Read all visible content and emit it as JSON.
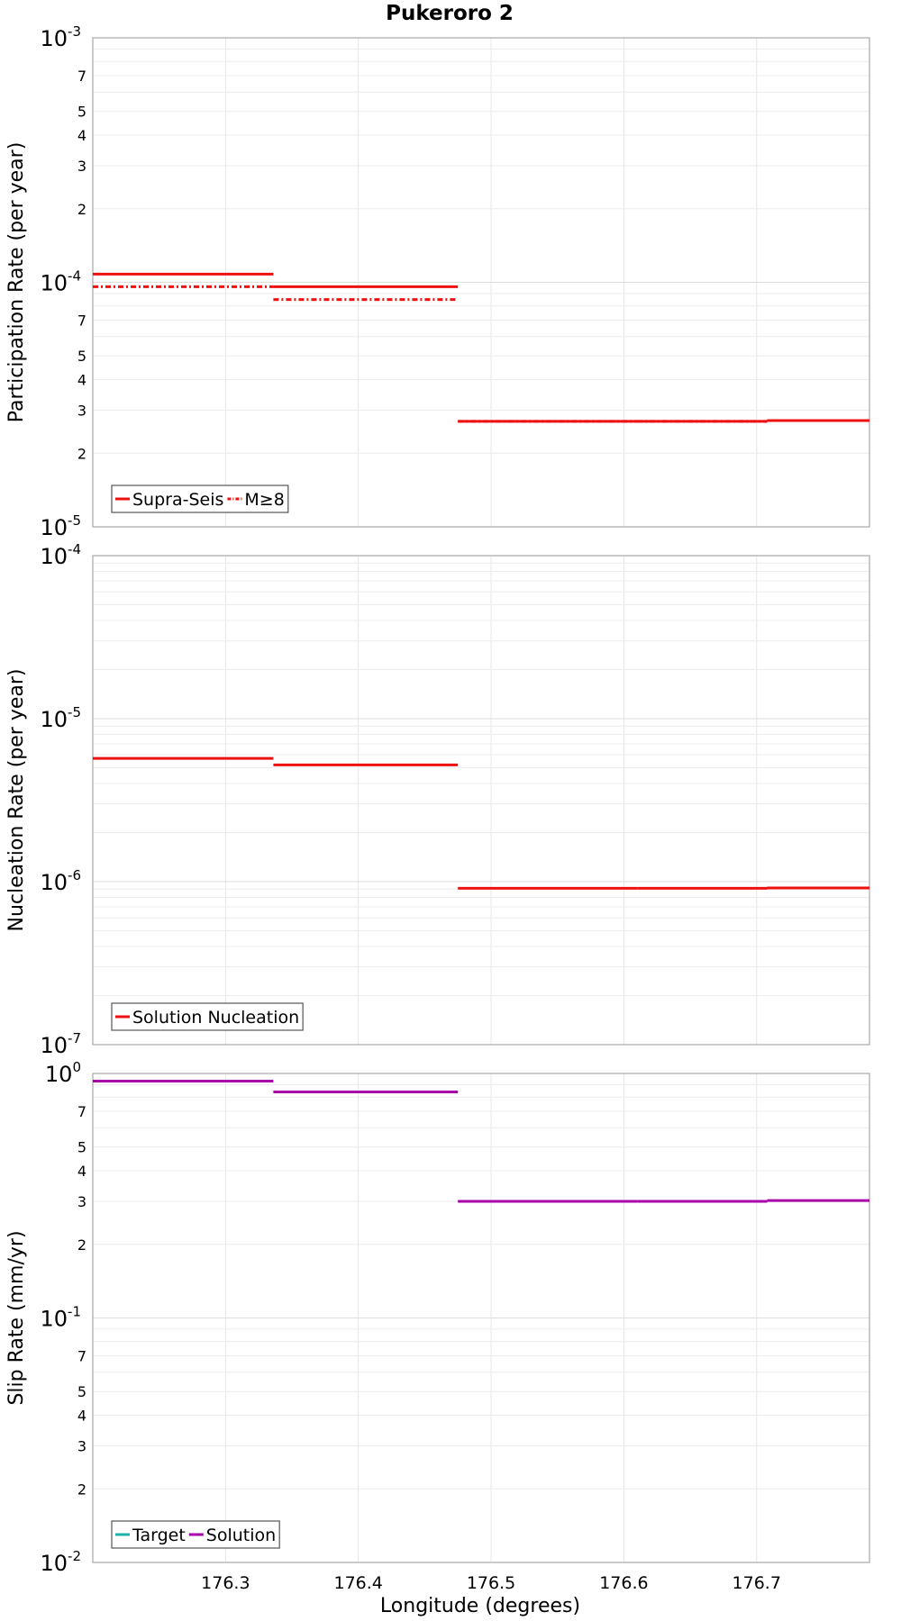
{
  "title": "Pukeroro 2",
  "xlabel": "Longitude (degrees)",
  "xlim": [
    176.2,
    176.785
  ],
  "xticks": [
    "176.3",
    "176.4",
    "176.5",
    "176.6",
    "176.7"
  ],
  "chart_data": [
    {
      "type": "line",
      "ylabel": "Participation Rate (per year)",
      "yscale": "log",
      "ylim": [
        1e-05,
        0.001
      ],
      "major_ticks": [
        {
          "base": "10",
          "exp": "-3"
        },
        {
          "base": "10",
          "exp": "-4"
        },
        {
          "base": "10",
          "exp": "-5"
        }
      ],
      "minor_tick_labels": [
        "7",
        "5",
        "4",
        "3",
        "2"
      ],
      "legend": [
        {
          "label": "Supra-Seis",
          "color": "#ee1111",
          "dash": "solid"
        },
        {
          "label": "M≥8",
          "color": "#ee1111",
          "dash": "dashdot"
        }
      ],
      "series": [
        {
          "name": "Supra-Seis",
          "color": "#ee1111",
          "dash": "solid",
          "steps": [
            {
              "x0": 176.2,
              "x1": 176.336,
              "y": 0.000108
            },
            {
              "x0": 176.336,
              "x1": 176.475,
              "y": 9.6e-05
            },
            {
              "x0": 176.475,
              "x1": 176.61,
              "y": 2.7e-05
            },
            {
              "x0": 176.61,
              "x1": 176.708,
              "y": 2.7e-05
            },
            {
              "x0": 176.708,
              "x1": 176.785,
              "y": 2.72e-05
            }
          ]
        },
        {
          "name": "M≥8",
          "color": "#ee1111",
          "dash": "dashdot",
          "steps": [
            {
              "x0": 176.2,
              "x1": 176.336,
              "y": 9.6e-05
            },
            {
              "x0": 176.336,
              "x1": 176.475,
              "y": 8.5e-05
            },
            {
              "x0": 176.475,
              "x1": 176.61,
              "y": 2.7e-05
            },
            {
              "x0": 176.61,
              "x1": 176.708,
              "y": 2.7e-05
            },
            {
              "x0": 176.708,
              "x1": 176.785,
              "y": 2.72e-05
            }
          ]
        }
      ]
    },
    {
      "type": "line",
      "ylabel": "Nucleation Rate (per year)",
      "yscale": "log",
      "ylim": [
        1e-07,
        0.0001
      ],
      "major_ticks": [
        {
          "base": "10",
          "exp": "-4"
        },
        {
          "base": "10",
          "exp": "-5"
        },
        {
          "base": "10",
          "exp": "-6"
        },
        {
          "base": "10",
          "exp": "-7"
        }
      ],
      "minor_tick_labels": [],
      "legend": [
        {
          "label": "Solution Nucleation",
          "color": "#ee1111",
          "dash": "solid"
        }
      ],
      "series": [
        {
          "name": "Solution Nucleation",
          "color": "#ee1111",
          "dash": "solid",
          "steps": [
            {
              "x0": 176.2,
              "x1": 176.336,
              "y": 5.7e-06
            },
            {
              "x0": 176.336,
              "x1": 176.475,
              "y": 5.2e-06
            },
            {
              "x0": 176.475,
              "x1": 176.61,
              "y": 9.1e-07
            },
            {
              "x0": 176.61,
              "x1": 176.708,
              "y": 9.1e-07
            },
            {
              "x0": 176.708,
              "x1": 176.785,
              "y": 9.15e-07
            }
          ]
        }
      ]
    },
    {
      "type": "line",
      "ylabel": "Slip Rate (mm/yr)",
      "yscale": "log",
      "ylim": [
        0.01,
        1.0
      ],
      "major_ticks": [
        {
          "base": "10",
          "exp": "0"
        },
        {
          "base": "10",
          "exp": "-1"
        },
        {
          "base": "10",
          "exp": "-2"
        }
      ],
      "minor_tick_labels": [
        "7",
        "5",
        "4",
        "3",
        "2"
      ],
      "legend": [
        {
          "label": "Target",
          "color": "#1fb3a8",
          "dash": "solid"
        },
        {
          "label": "Solution",
          "color": "#aa00aa",
          "dash": "solid"
        }
      ],
      "series": [
        {
          "name": "Solution",
          "color": "#aa00aa",
          "dash": "solid",
          "steps": [
            {
              "x0": 176.2,
              "x1": 176.336,
              "y": 0.93
            },
            {
              "x0": 176.336,
              "x1": 176.475,
              "y": 0.84
            },
            {
              "x0": 176.475,
              "x1": 176.61,
              "y": 0.3
            },
            {
              "x0": 176.61,
              "x1": 176.708,
              "y": 0.3
            },
            {
              "x0": 176.708,
              "x1": 176.785,
              "y": 0.302
            }
          ]
        }
      ]
    }
  ]
}
